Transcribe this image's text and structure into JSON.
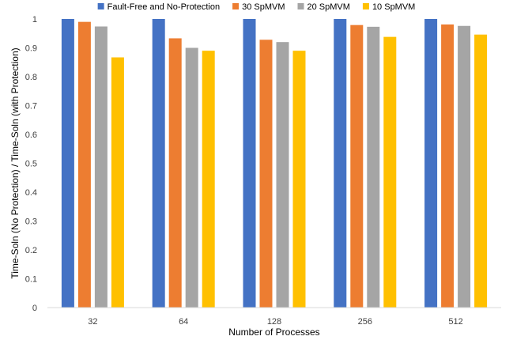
{
  "chart_data": {
    "type": "bar",
    "categories": [
      "32",
      "64",
      "128",
      "256",
      "512"
    ],
    "series": [
      {
        "name": "Fault-Free and No-Protection",
        "color": "#4472C4",
        "values": [
          1.0,
          1.0,
          1.0,
          1.0,
          1.0
        ]
      },
      {
        "name": "30 SpMVM",
        "color": "#ED7D31",
        "values": [
          0.99,
          0.933,
          0.928,
          0.979,
          0.981
        ]
      },
      {
        "name": "20 SpMVM",
        "color": "#A5A5A5",
        "values": [
          0.974,
          0.9,
          0.92,
          0.973,
          0.976
        ]
      },
      {
        "name": "10 SpMVM",
        "color": "#FFC000",
        "values": [
          0.867,
          0.89,
          0.89,
          0.938,
          0.946
        ]
      }
    ],
    "title": "",
    "xlabel": "Number of Processes",
    "ylabel": "Time-Soln (No Protection) / Time-Soln (with Protection)",
    "ylim": [
      0,
      1
    ],
    "yticks": [
      "0",
      "0.1",
      "0.2",
      "0.3",
      "0.4",
      "0.5",
      "0.6",
      "0.7",
      "0.8",
      "0.9",
      "1"
    ],
    "grid": false,
    "legend_position": "top"
  }
}
